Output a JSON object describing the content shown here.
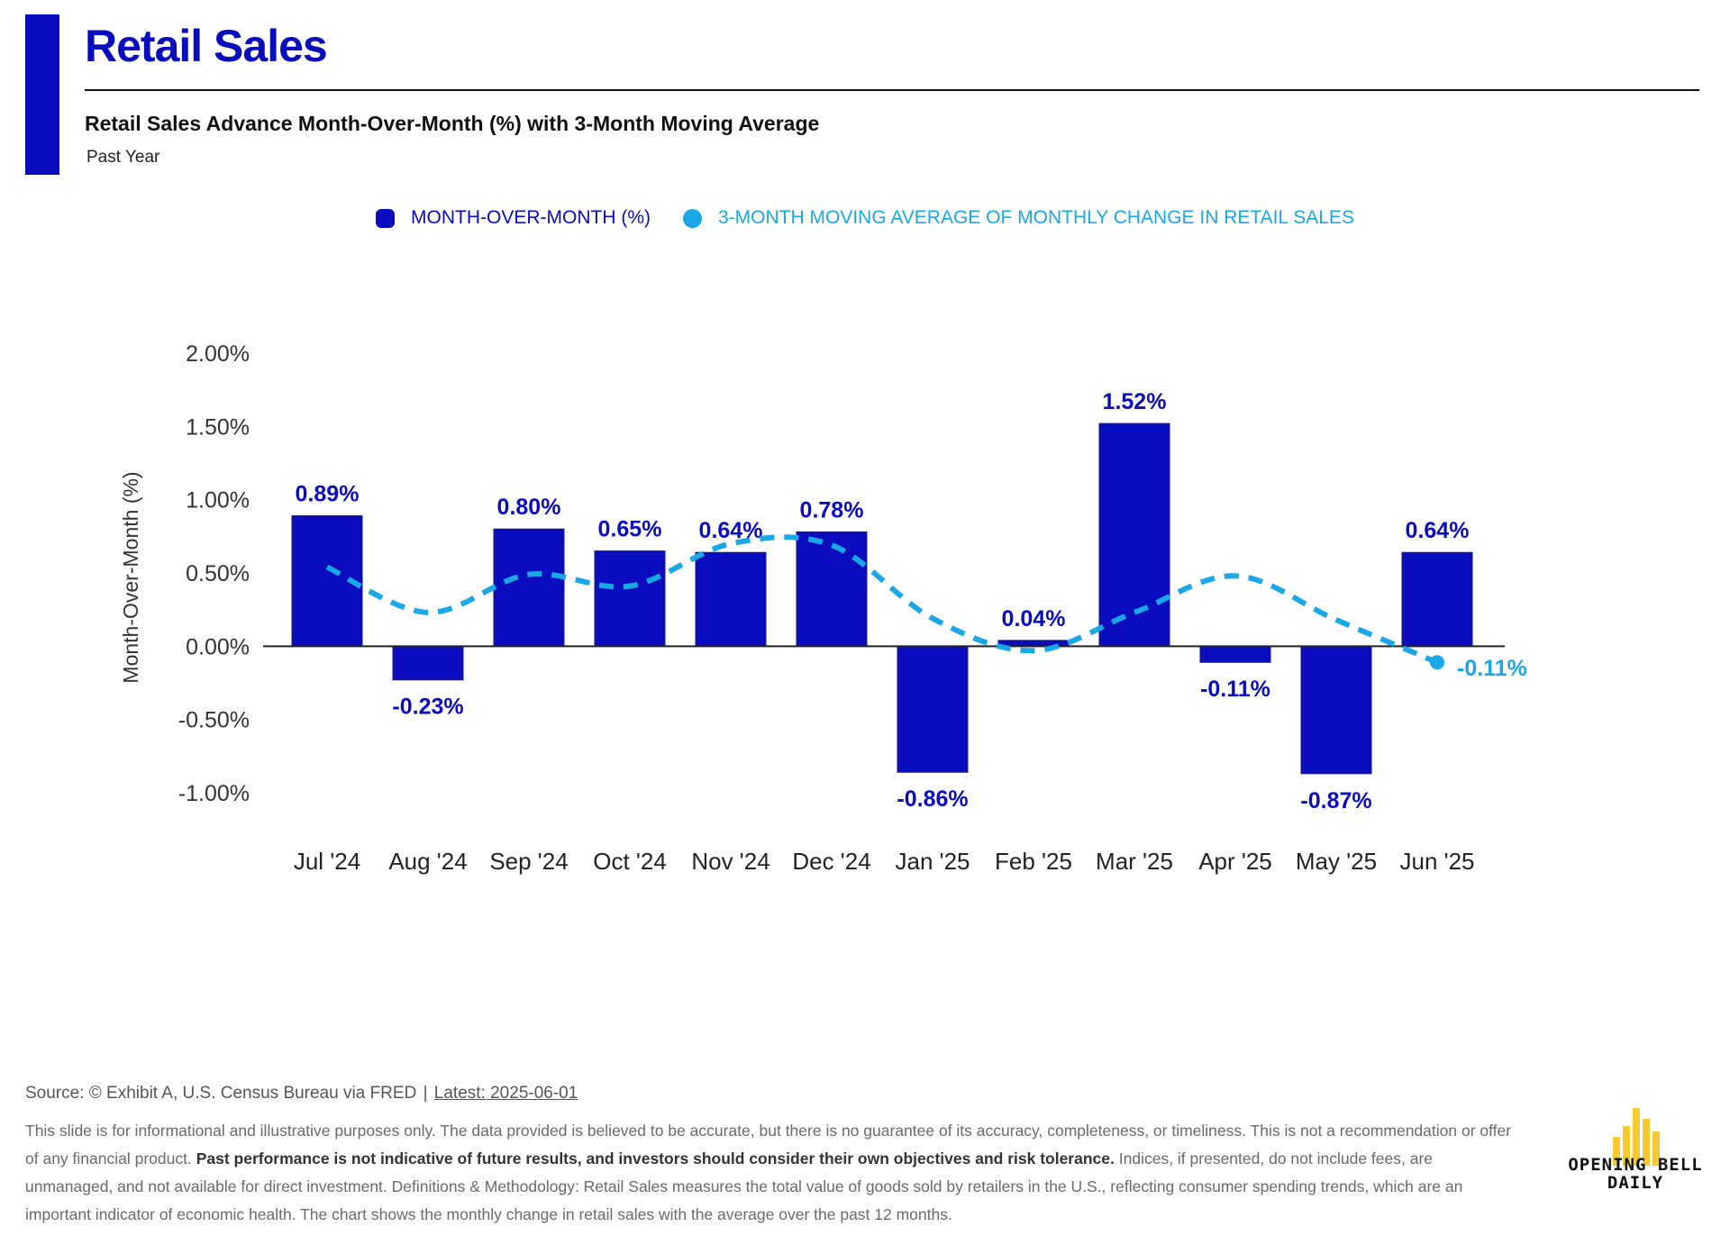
{
  "header": {
    "title": "Retail Sales",
    "subtitle": "Retail Sales Advance Month-Over-Month (%) with 3-Month Moving Average",
    "timeframe": "Past Year"
  },
  "colors": {
    "accent": "#0a0dbd",
    "bar": "#0a0dbd",
    "moving_average": "#1aa7e6"
  },
  "chart_data": {
    "type": "bar",
    "ylabel": "Month-Over-Month (%)",
    "ylim": [
      -1.0,
      2.0
    ],
    "yticks": [
      2.0,
      1.5,
      1.0,
      0.5,
      0.0,
      -0.5,
      -1.0
    ],
    "ytick_labels": [
      "2.00%",
      "1.50%",
      "1.00%",
      "0.50%",
      "0.00%",
      "-0.50%",
      "-1.00%"
    ],
    "categories": [
      "Jul '24",
      "Aug '24",
      "Sep '24",
      "Oct '24",
      "Nov '24",
      "Dec '24",
      "Jan '25",
      "Feb '25",
      "Mar '25",
      "Apr '25",
      "May '25",
      "Jun '25"
    ],
    "legend_position": "top-center",
    "grid": false,
    "series": [
      {
        "name": "MONTH-OVER-MONTH (%)",
        "type": "bar",
        "values": [
          0.89,
          -0.23,
          0.8,
          0.65,
          0.64,
          0.78,
          -0.86,
          0.04,
          1.52,
          -0.11,
          -0.87,
          0.64
        ],
        "labels": [
          "0.89%",
          "-0.23%",
          "0.80%",
          "0.65%",
          "0.64%",
          "0.78%",
          "-0.86%",
          "0.04%",
          "1.52%",
          "-0.11%",
          "-0.87%",
          "0.64%"
        ]
      },
      {
        "name": "3-MONTH MOVING AVERAGE OF MONTHLY CHANGE IN RETAIL SALES",
        "type": "line",
        "style": "dashed",
        "values": [
          0.54,
          0.23,
          0.49,
          0.41,
          0.7,
          0.69,
          0.19,
          -0.03,
          0.23,
          0.48,
          0.18,
          -0.11
        ],
        "last_label": "-0.11%"
      }
    ]
  },
  "footer": {
    "source": "Source: © Exhibit A, U.S. Census Bureau via FRED",
    "separator": "|",
    "latest": "Latest: 2025-06-01",
    "disclaimer_start": "This slide is for informational and illustrative purposes only. The data provided is believed to be accurate, but there is no guarantee of its accuracy, completeness, or timeliness. This is not a recommendation or offer of any financial product.",
    "disclaimer_bold": "Past performance is not indicative of future results, and investors should consider their own objectives and risk tolerance.",
    "disclaimer_end": "Indices, if presented, do not include fees, are unmanaged, and not available for direct investment. Definitions & Methodology: Retail Sales measures the total value of goods sold by retailers in the U.S., reflecting consumer spending trends, which are an important indicator of economic health. The chart shows the monthly change in retail sales with the average over the past 12 months."
  },
  "logo": {
    "line1": "OPENING BELL",
    "line2": "DAILY",
    "color": "#f6c92e"
  }
}
